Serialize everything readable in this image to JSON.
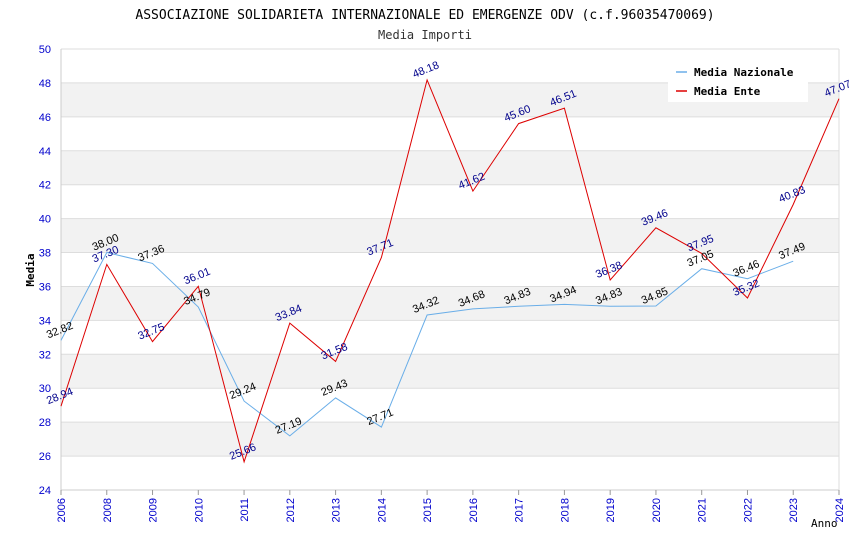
{
  "chart_data": {
    "type": "line",
    "title": "ASSOCIAZIONE SOLIDARIETA INTERNAZIONALE ED EMERGENZE ODV (c.f.96035470069)",
    "subtitle": "Media Importi",
    "xlabel": "Anno",
    "ylabel": "Media",
    "ylim": [
      24,
      50
    ],
    "yticks": [
      "24",
      "26",
      "28",
      "30",
      "32",
      "34",
      "36",
      "38",
      "40",
      "42",
      "44",
      "46",
      "48",
      "50"
    ],
    "categories": [
      "2006",
      "2008",
      "2009",
      "2010",
      "2011",
      "2012",
      "2013",
      "2014",
      "2015",
      "2016",
      "2017",
      "2018",
      "2019",
      "2020",
      "2021",
      "2022",
      "2023",
      "2024"
    ],
    "grid": true,
    "legend_position": "top-right",
    "series": [
      {
        "name": "Media Nazionale",
        "color": "#6aaee8",
        "label_color": "#000000",
        "values": [
          32.82,
          38.0,
          37.36,
          34.79,
          29.24,
          27.19,
          29.43,
          27.71,
          34.32,
          34.68,
          34.83,
          34.94,
          34.83,
          34.85,
          37.05,
          36.46,
          37.49,
          null
        ],
        "labels": [
          "32.82",
          "38.00",
          "37.36",
          "34.79",
          "29.24",
          "27.19",
          "29.43",
          "27.71",
          "34.32",
          "34.68",
          "34.83",
          "34.94",
          "34.83",
          "34.85",
          "37.05",
          "36.46",
          "37.49",
          ""
        ]
      },
      {
        "name": "Media Ente",
        "color": "#dd0000",
        "label_color": "#00008b",
        "values": [
          28.94,
          37.3,
          32.75,
          36.01,
          25.66,
          33.84,
          31.58,
          37.71,
          48.18,
          41.62,
          45.6,
          46.51,
          36.38,
          39.46,
          37.95,
          35.32,
          40.83,
          47.07
        ],
        "labels": [
          "28.94",
          "37.30",
          "32.75",
          "36.01",
          "25.66",
          "33.84",
          "31.58",
          "37.71",
          "48.18",
          "41.62",
          "45.60",
          "46.51",
          "36.38",
          "39.46",
          "37.95",
          "35.32",
          "40.83",
          "47.07"
        ]
      }
    ]
  }
}
